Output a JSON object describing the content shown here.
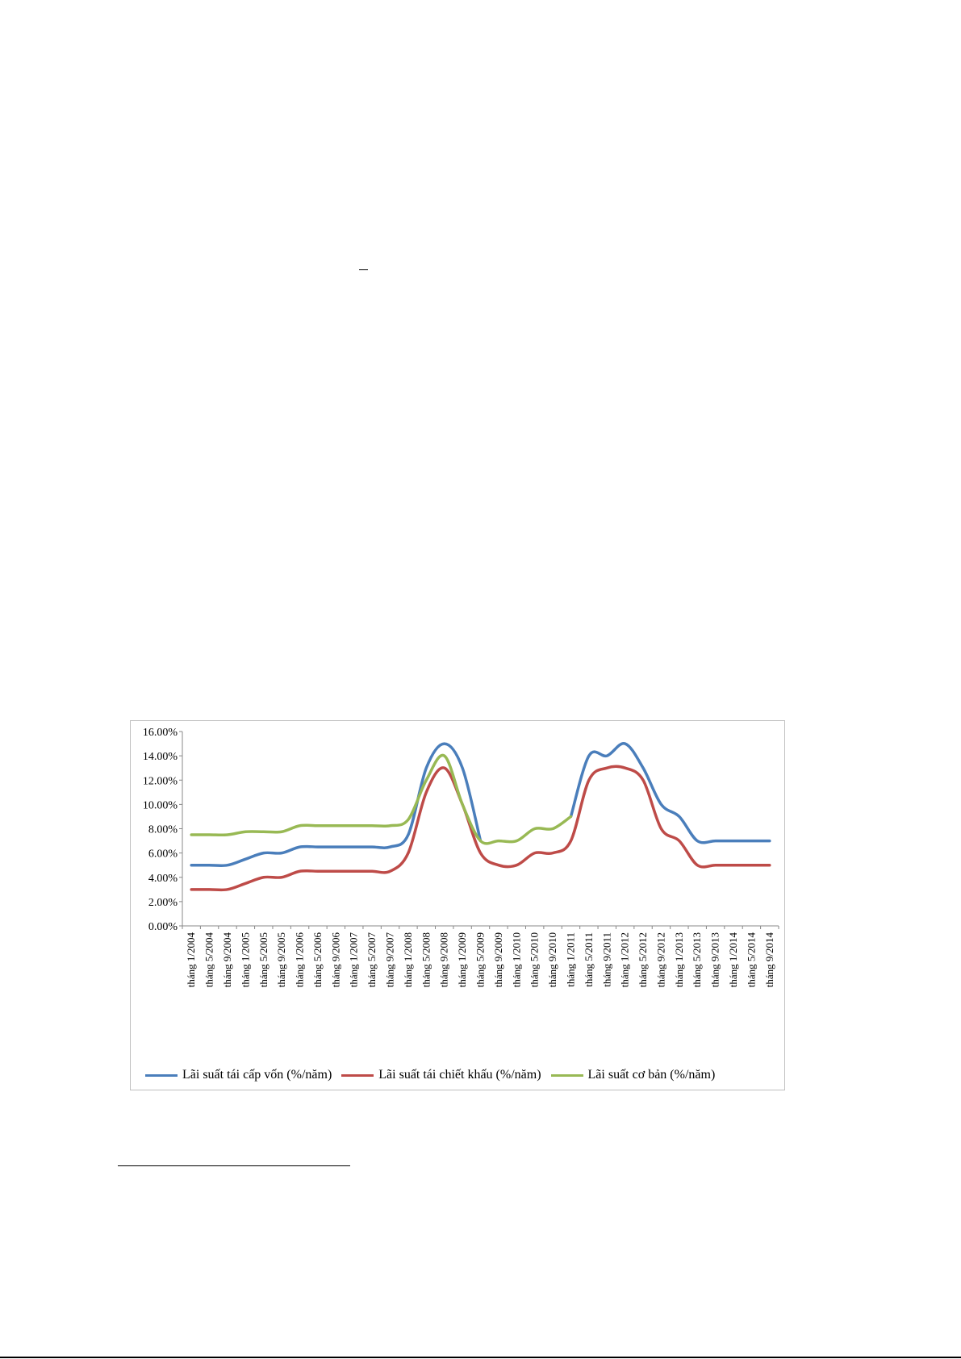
{
  "chart_data": {
    "type": "line",
    "x": [
      "tháng 1/2004",
      "tháng 5/2004",
      "tháng 9/2004",
      "tháng 1/2005",
      "tháng 5/2005",
      "tháng 9/2005",
      "tháng 1/2006",
      "tháng 5/2006",
      "tháng 9/2006",
      "tháng 1/2007",
      "tháng 5/2007",
      "tháng 9/2007",
      "tháng 1/2008",
      "tháng 5/2008",
      "tháng 9/2008",
      "tháng 1/2009",
      "tháng 5/2009",
      "tháng 9/2009",
      "tháng 1/2010",
      "tháng 5/2010",
      "tháng 9/2010",
      "tháng 1/2011",
      "tháng 5/2011",
      "tháng 9/2011",
      "tháng 1/2012",
      "tháng 5/2012",
      "tháng 9/2012",
      "tháng 1/2013",
      "tháng 5/2013",
      "tháng 9/2013",
      "tháng 1/2014",
      "tháng 5/2014",
      "tháng 9/2014"
    ],
    "ylim": [
      0,
      16
    ],
    "yticks": [
      "0.00%",
      "2.00%",
      "4.00%",
      "6.00%",
      "8.00%",
      "10.00%",
      "12.00%",
      "14.00%",
      "16.00%"
    ],
    "grid": false,
    "legend_position": "bottom",
    "series": [
      {
        "name": "Lãi suất tái cấp vốn (%/năm)",
        "color": "#4a7ebb",
        "values": [
          5,
          5,
          5,
          5.5,
          6,
          6,
          6.5,
          6.5,
          6.5,
          6.5,
          6.5,
          6.5,
          7.5,
          13,
          15,
          13,
          7,
          null,
          null,
          null,
          null,
          9,
          14,
          14,
          15,
          13,
          10,
          9,
          7,
          7,
          7,
          7,
          7
        ]
      },
      {
        "name": "Lãi suất tái chiết khấu (%/năm)",
        "color": "#be4b48",
        "values": [
          3,
          3,
          3,
          3.5,
          4,
          4,
          4.5,
          4.5,
          4.5,
          4.5,
          4.5,
          4.5,
          6,
          11,
          13,
          10,
          6,
          5,
          5,
          6,
          6,
          7,
          12,
          13,
          13,
          12,
          8,
          7,
          5,
          5,
          5,
          5,
          5
        ]
      },
      {
        "name": "Lãi suất cơ bản (%/năm)",
        "color": "#98b954",
        "values": [
          7.5,
          7.5,
          7.5,
          7.75,
          7.75,
          7.75,
          8.25,
          8.25,
          8.25,
          8.25,
          8.25,
          8.25,
          8.75,
          12,
          14,
          10,
          7,
          7,
          7,
          8,
          8,
          9,
          null,
          null,
          null,
          null,
          null,
          null,
          null,
          null,
          null,
          null,
          null
        ]
      }
    ]
  }
}
